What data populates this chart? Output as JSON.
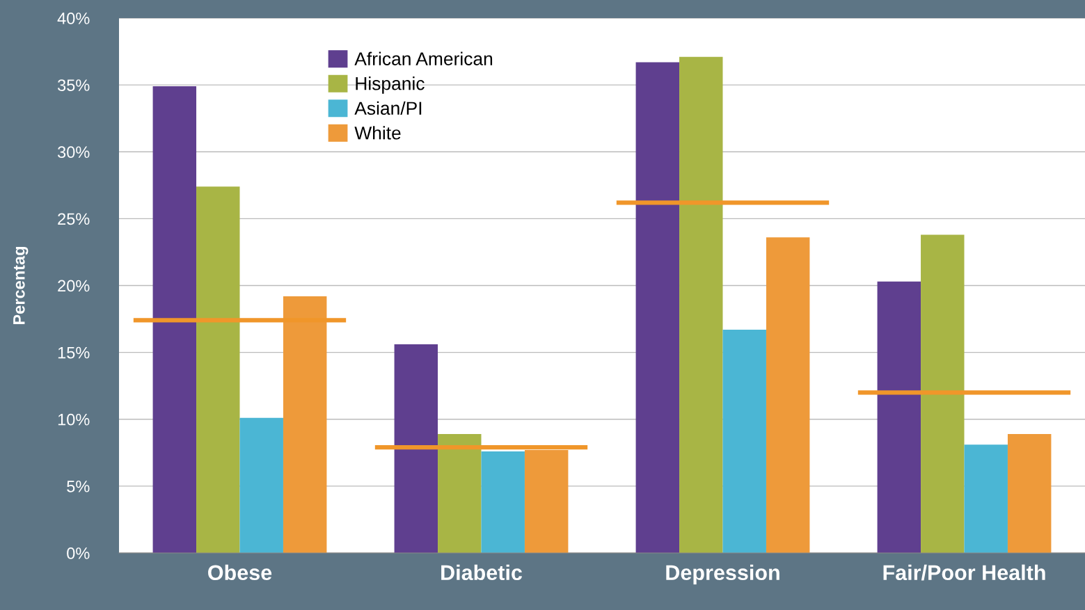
{
  "chart_data": {
    "type": "bar",
    "ylabel": "Percentag",
    "categories": [
      "Obese",
      "Diabetic",
      "Depression",
      "Fair/Poor Health"
    ],
    "series": [
      {
        "name": "African American",
        "color": "#5f3f8f",
        "values": [
          34.9,
          15.6,
          36.7,
          20.3
        ]
      },
      {
        "name": "Hispanic",
        "color": "#a8b545",
        "values": [
          27.4,
          8.9,
          37.1,
          23.8
        ]
      },
      {
        "name": "Asian/PI",
        "color": "#4bb6d4",
        "values": [
          10.1,
          7.6,
          16.7,
          8.1
        ]
      },
      {
        "name": "White",
        "color": "#ee9a3a",
        "values": [
          19.2,
          7.7,
          23.6,
          8.9
        ]
      }
    ],
    "ref_lines": [
      {
        "axis": "y",
        "value": 17.4,
        "color": "#f0962a"
      },
      {
        "axis": "y",
        "value": 7.9,
        "color": "#f0962a"
      },
      {
        "axis": "y",
        "value": 26.2,
        "color": "#f0962a"
      },
      {
        "axis": "y",
        "value": 12.0,
        "color": "#f0962a"
      }
    ],
    "ylim": [
      0,
      40
    ],
    "yticks": [
      {
        "value": 0,
        "label": "0%"
      },
      {
        "value": 5,
        "label": "5%"
      },
      {
        "value": 10,
        "label": "10%"
      },
      {
        "value": 15,
        "label": "15%"
      },
      {
        "value": 20,
        "label": "20%"
      },
      {
        "value": 25,
        "label": "25%"
      },
      {
        "value": 30,
        "label": "30%"
      },
      {
        "value": 35,
        "label": "35%"
      },
      {
        "value": 40,
        "label": "40%"
      }
    ],
    "grid": "y",
    "legend": "top left"
  }
}
